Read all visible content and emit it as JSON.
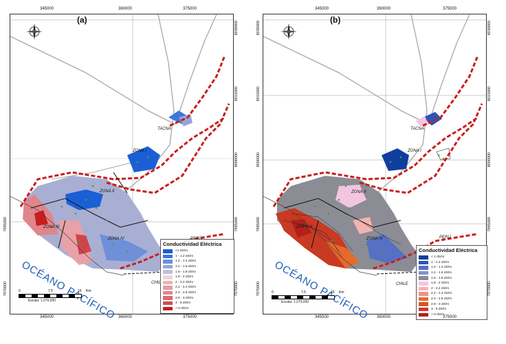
{
  "panels": [
    {
      "label": "(a)",
      "legend_title": "Conductividad Eléctrica",
      "legend": [
        {
          "text": "<1 dS/m",
          "color": "#1b5fd6"
        },
        {
          "text": "1 - 1.2 dS/m",
          "color": "#3c78dc"
        },
        {
          "text": "1.2 - 1.4 dS/m",
          "color": "#6f8fd8"
        },
        {
          "text": "1.4 - 1.6 dS/m",
          "color": "#98a6d6"
        },
        {
          "text": "1.6 - 1.8 dS/m",
          "color": "#bcc1dd"
        },
        {
          "text": "1.8 - 2 dS/m",
          "color": "#eed3d6"
        },
        {
          "text": "2 - 2.2 dS/m",
          "color": "#ecb4b8"
        },
        {
          "text": "2.2 - 2.4 dS/m",
          "color": "#e79ca2"
        },
        {
          "text": "2.4 - 2.8 dS/m",
          "color": "#e2868c"
        },
        {
          "text": "2.8 - 3 dS/m",
          "color": "#dc6b70"
        },
        {
          "text": "3 - 6 dS/m",
          "color": "#d44a4e"
        },
        {
          "text": "> 6 dS/m",
          "color": "#c81e1e"
        }
      ],
      "ticks_top": [
        "345000",
        "360000",
        "375000"
      ],
      "ticks_bottom": [
        "345000",
        "360000",
        "375000"
      ],
      "ticks_right": [
        "8030000",
        "8015000",
        "8000000",
        "7985000",
        "7970000"
      ],
      "ticks_left": [
        "8030000",
        "8015000",
        "8000000",
        "7985000",
        "7970000"
      ],
      "zones": [
        "ZONA I",
        "ZONA II",
        "ZONA III",
        "ZONA IV"
      ],
      "city": "TACNA",
      "peru": "PERÚ",
      "chile": "CHILE",
      "ocean": "OCÉANO PACÍFICO",
      "scale_labels": [
        "0",
        "7.5",
        "15"
      ],
      "scale_unit": "Km",
      "scale_caption": "Escala: 1:270,000",
      "compass": [
        "N",
        "S",
        "E",
        "W"
      ]
    },
    {
      "label": "(b)",
      "legend_title": "Conductividad Eléctrica",
      "legend": [
        {
          "text": "< 1 dS/m",
          "color": "#0f3f9e"
        },
        {
          "text": "1 - 1.2 dS/m",
          "color": "#2c56b8"
        },
        {
          "text": "1.2 - 1.4 dS/m",
          "color": "#5670c4"
        },
        {
          "text": "1.4 - 1.6 dS/m",
          "color": "#8290cf"
        },
        {
          "text": "1.6 - 1.8 dS/m",
          "color": "#8c8c94"
        },
        {
          "text": "1.8 - 2 dS/m",
          "color": "#f2c6e2"
        },
        {
          "text": "2 - 2.2 dS/m",
          "color": "#f4b2b2"
        },
        {
          "text": "2.2 - 2.4 dS/m",
          "color": "#f09090"
        },
        {
          "text": "2.4 - 2.8 dS/m",
          "color": "#e66a2a"
        },
        {
          "text": "2.8 - 3 dS/m",
          "color": "#d8552a"
        },
        {
          "text": "3 - 6 dS/m",
          "color": "#c83a22"
        },
        {
          "text": "> 6 dS/m",
          "color": "#b3201a"
        }
      ],
      "ticks_top": [
        "345000",
        "360000",
        "375000"
      ],
      "ticks_bottom": [
        "345000",
        "360000",
        "375000"
      ],
      "ticks_right": [
        "8030000",
        "8015000",
        "8000000",
        "7985000",
        "7970000"
      ],
      "ticks_left": [
        "8030000",
        "8015000",
        "8000000",
        "7985000",
        "7970000"
      ],
      "zones": [
        "ZONA I",
        "ZONA II",
        "ZONA III",
        "ZONA IV"
      ],
      "city": "TACNA",
      "peru": "PERÚ",
      "chile": "CHILE",
      "ocean": "OCÉANO PACÍFICO",
      "scale_labels": [
        "0",
        "7.5",
        "15"
      ],
      "scale_unit": "Km",
      "scale_caption": "Escala: 1:270,000",
      "compass": [
        "N",
        "S",
        "E",
        "W"
      ]
    }
  ]
}
